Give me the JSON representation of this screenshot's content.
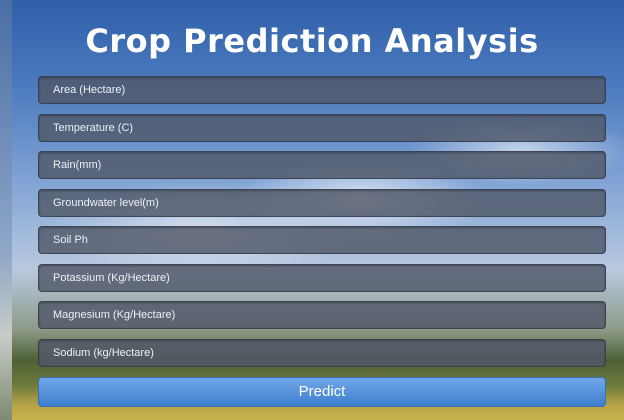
{
  "header": {
    "title": "Crop Prediction Analysis"
  },
  "form": {
    "fields": [
      "Area (Hectare)",
      "Temperature (C)",
      "Rain(mm)",
      "Groundwater level(m)",
      "Soil Ph",
      "Potassium (Kg/Hectare)",
      "Magnesium (Kg/Hectare)",
      "Sodium (kg/Hectare)"
    ],
    "button": "Predict"
  }
}
